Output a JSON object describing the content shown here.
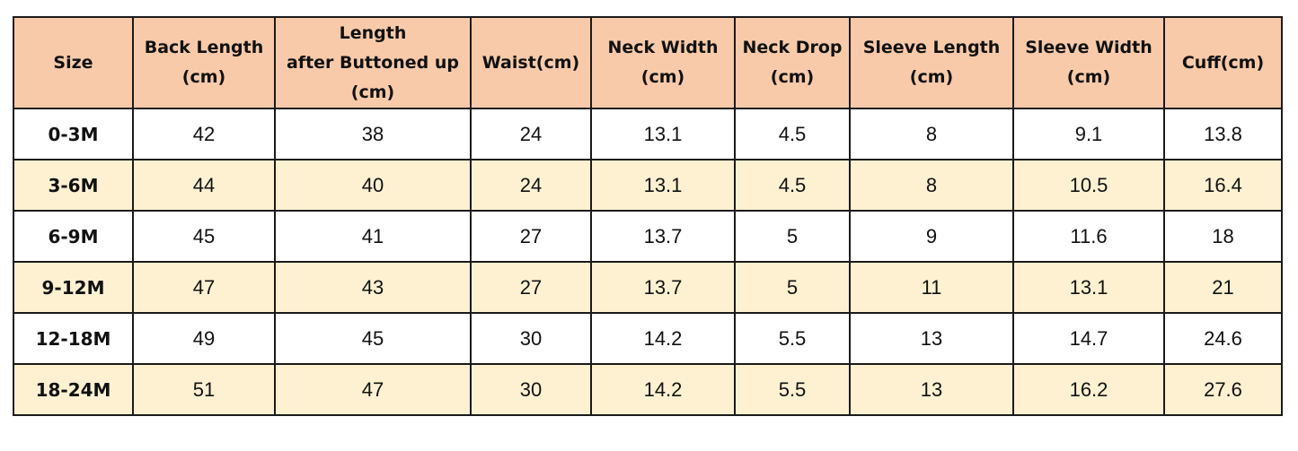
{
  "table": {
    "header": [
      "Size",
      "Back Length\n(cm)",
      "Length\nafter Buttoned up\n(cm)",
      "Waist(cm)",
      "Neck Width\n(cm)",
      "Neck Drop\n(cm)",
      "Sleeve Length\n(cm)",
      "Sleeve Width\n(cm)",
      "Cuff(cm)"
    ],
    "rows": [
      [
        "0-3M",
        42,
        38,
        24,
        13.1,
        4.5,
        8,
        9.1,
        13.8
      ],
      [
        "3-6M",
        44,
        40,
        24,
        13.1,
        4.5,
        8,
        10.5,
        16.4
      ],
      [
        "6-9M",
        45,
        41,
        27,
        13.7,
        5,
        9,
        11.6,
        18
      ],
      [
        "9-12M",
        47,
        43,
        27,
        13.7,
        5,
        11,
        13.1,
        21
      ],
      [
        "12-18M",
        49,
        45,
        30,
        14.2,
        5.5,
        13,
        14.7,
        24.6
      ],
      [
        "18-24M",
        51,
        47,
        30,
        14.2,
        5.5,
        13,
        16.2,
        27.6
      ]
    ]
  }
}
